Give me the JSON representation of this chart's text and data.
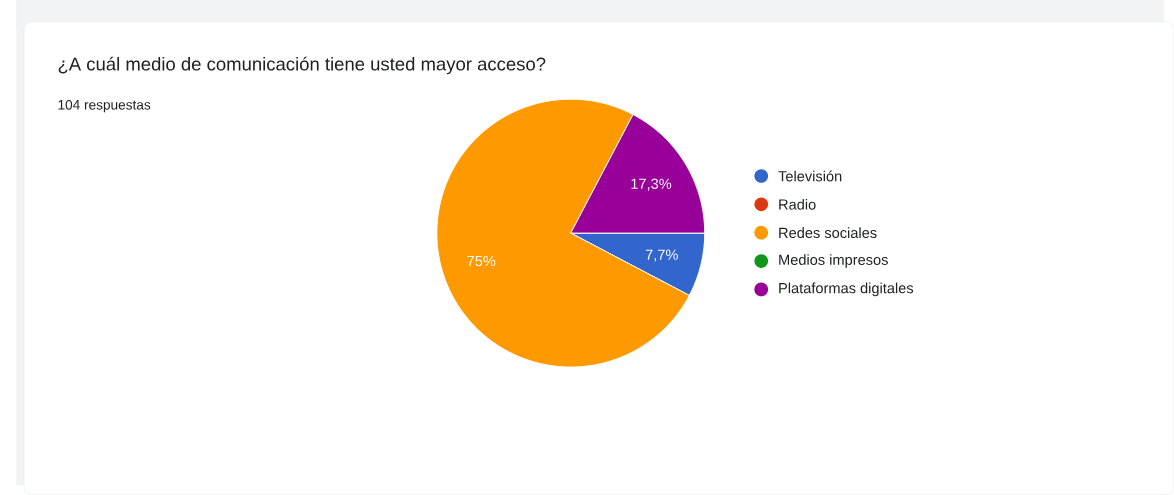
{
  "chart_data": {
    "type": "pie",
    "title": "¿A cuál medio de comunicación tiene usted mayor acceso?",
    "subtitle": "104 respuestas",
    "categories": [
      "Televisión",
      "Radio",
      "Redes sociales",
      "Medios impresos",
      "Plataformas digitales"
    ],
    "values": [
      7.7,
      0,
      75,
      0,
      17.3
    ],
    "colors": [
      "#3366cc",
      "#dc3912",
      "#ff9900",
      "#109618",
      "#990099"
    ],
    "value_labels": [
      "7,7%",
      null,
      "75%",
      null,
      "17,3%"
    ],
    "legend": "right"
  }
}
